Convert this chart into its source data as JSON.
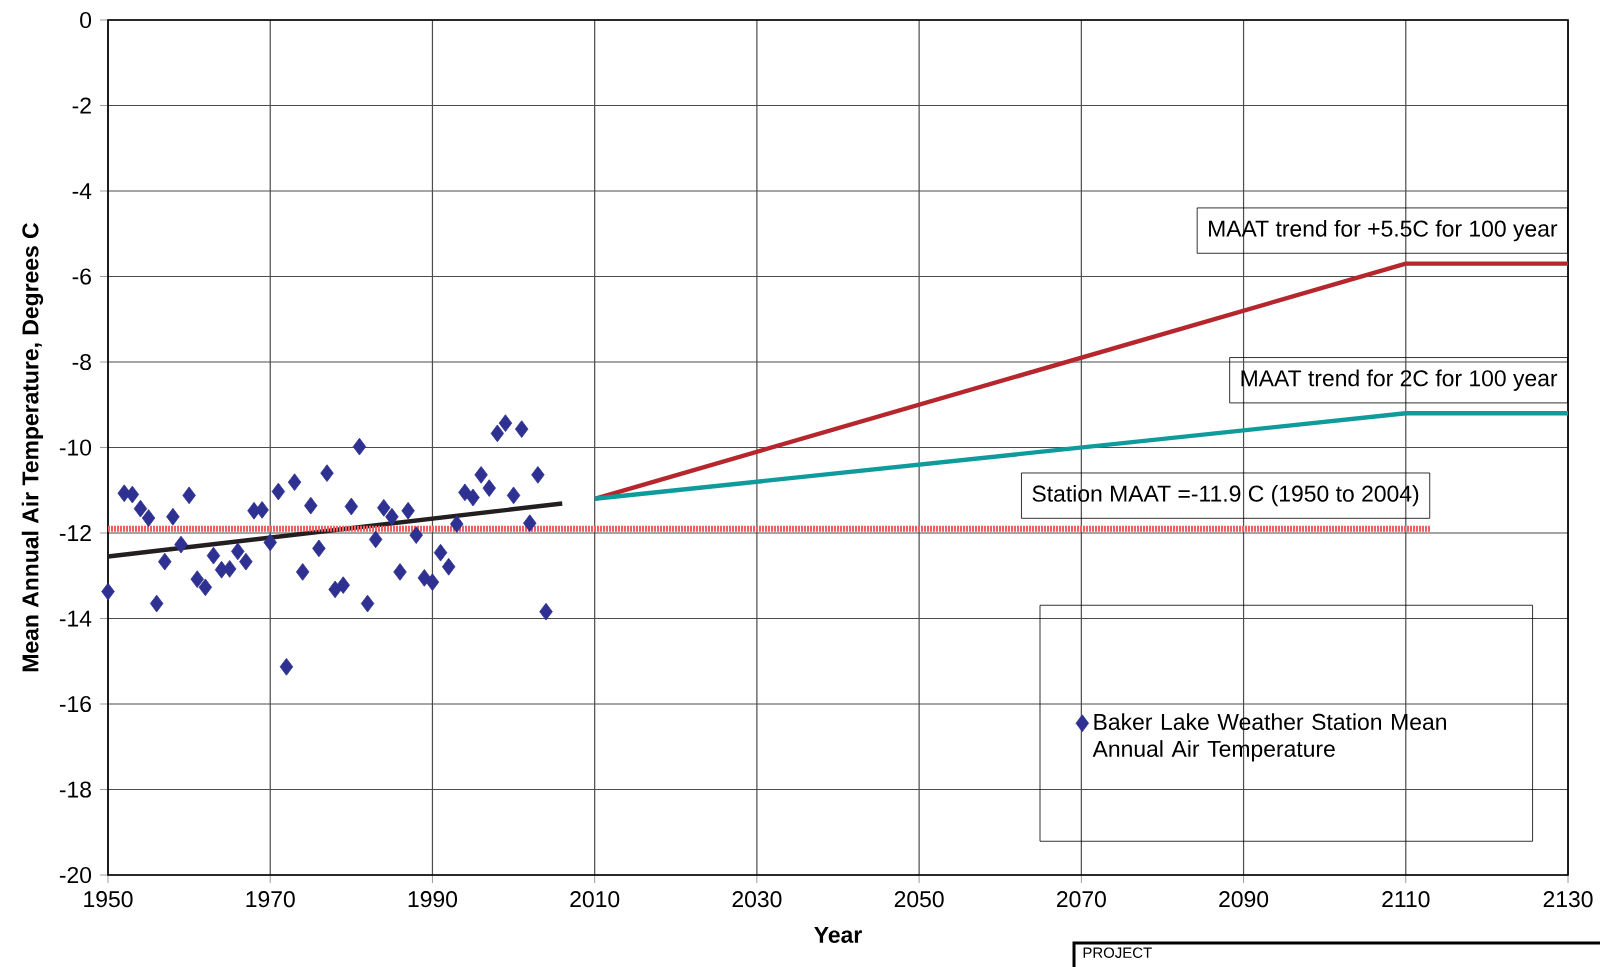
{
  "chart_data": {
    "type": "scatter",
    "xlabel": "Year",
    "ylabel": "Mean Annual Air Temperature, Degrees C",
    "xlim": [
      1950,
      2130
    ],
    "ylim": [
      -20,
      0
    ],
    "xticks": [
      1950,
      1970,
      1990,
      2010,
      2030,
      2050,
      2070,
      2090,
      2110,
      2130
    ],
    "yticks": [
      -20,
      -18,
      -16,
      -14,
      -12,
      -10,
      -8,
      -6,
      -4,
      -2,
      0
    ],
    "grid": true,
    "legend": "bottom right",
    "annotations": [
      "PROJECT"
    ],
    "series": [
      {
        "name": "Baker Lake Weather Station Mean Annual Air Temperature",
        "color": "#2e3192",
        "marker": "diamond",
        "x": [
          1950,
          1952,
          1953,
          1954,
          1955,
          1956,
          1957,
          1958,
          1959,
          1960,
          1961,
          1962,
          1963,
          1964,
          1965,
          1966,
          1967,
          1968,
          1969,
          1970,
          1971,
          1972,
          1973,
          1974,
          1975,
          1976,
          1977,
          1978,
          1979,
          1980,
          1981,
          1982,
          1983,
          1984,
          1985,
          1986,
          1987,
          1988,
          1989,
          1990,
          1991,
          1992,
          1993,
          1994,
          1995,
          1996,
          1997,
          1998,
          1999,
          2000,
          2001,
          2002,
          2003,
          2004
        ],
        "values": [
          -13.37,
          -11.07,
          -11.1,
          -11.43,
          -11.65,
          -13.65,
          -12.67,
          -11.62,
          -12.27,
          -11.12,
          -13.08,
          -13.27,
          -12.53,
          -12.86,
          -12.84,
          -12.43,
          -12.67,
          -11.48,
          -11.46,
          -12.22,
          -11.03,
          -15.13,
          -10.81,
          -12.91,
          -11.36,
          -12.36,
          -10.6,
          -13.32,
          -13.22,
          -11.38,
          -9.98,
          -13.65,
          -12.15,
          -11.41,
          -11.62,
          -12.91,
          -11.48,
          -12.05,
          -13.05,
          -13.15,
          -12.46,
          -12.79,
          -11.79,
          -11.05,
          -11.17,
          -10.64,
          -10.95,
          -9.67,
          -9.43,
          -11.12,
          -9.57,
          -11.77,
          -10.64,
          -13.84
        ]
      },
      {
        "type": "line",
        "color": "#231f20",
        "marker": "none",
        "line_style": "solid",
        "x": [
          1950,
          2006
        ],
        "values": [
          -12.55,
          -11.31
        ]
      },
      {
        "type": "line",
        "name": "MAAT trend for +5.5C for 100 year",
        "color": "#b5272d",
        "marker": "none",
        "line_style": "solid",
        "x": [
          2010,
          2110,
          2130
        ],
        "values": [
          -11.2,
          -5.7,
          -5.7
        ]
      },
      {
        "type": "line",
        "name": "MAAT trend for 2C for 100 year",
        "color": "#0f9b9b",
        "marker": "none",
        "line_style": "solid",
        "x": [
          2010,
          2110,
          2130
        ],
        "values": [
          -11.2,
          -9.2,
          -9.2
        ]
      },
      {
        "type": "line",
        "name": "Station MAAT =-11.9 C (1950 to 2004)",
        "color": "#f06060",
        "marker": "none",
        "line_style": "dotted",
        "x": [
          1950,
          2113
        ],
        "values": [
          -11.9,
          -11.9
        ]
      }
    ]
  }
}
